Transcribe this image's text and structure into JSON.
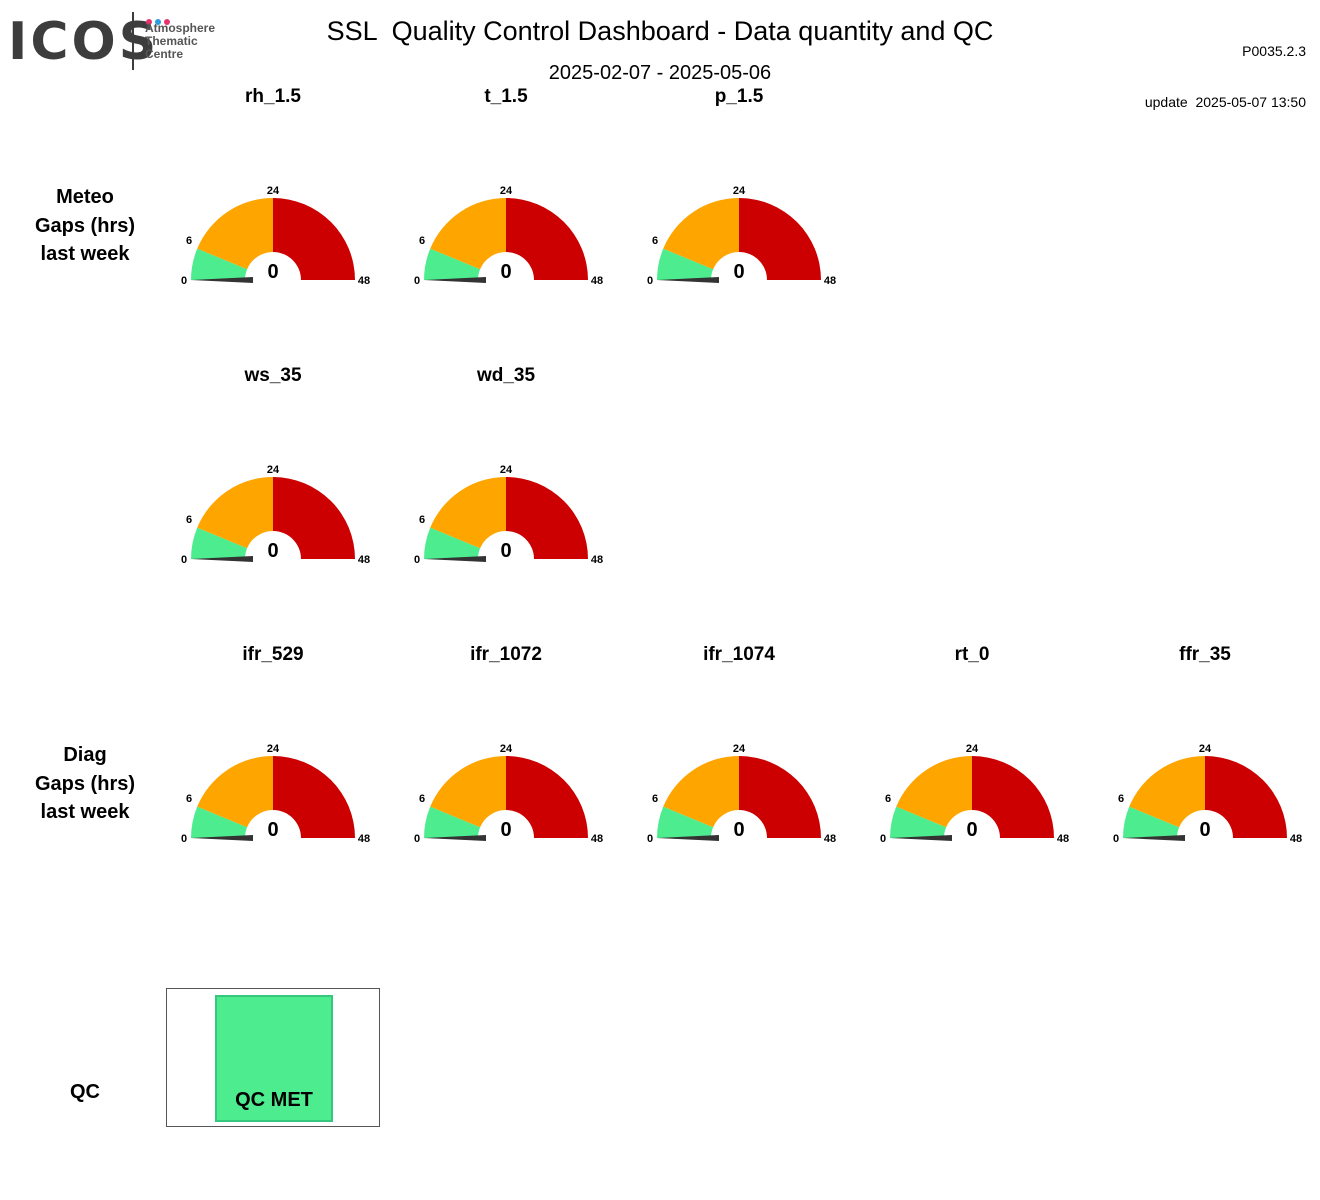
{
  "header": {
    "logo_text": "ICOS",
    "logo_subtitle_lines": [
      "Atmosphere",
      "Thematic",
      "Centre"
    ],
    "title": "SSL  Quality Control Dashboard - Data quantity and QC",
    "date_range": "2025-02-07 - 2025-05-06",
    "version": "P0035.2.3",
    "update": "update  2025-05-07 13:50"
  },
  "colors": {
    "green": "#4ded8f",
    "orange": "#ffa500",
    "red": "#cc0000",
    "needle": "#333333",
    "logo_dots": [
      "#e6336f",
      "#2b9be0",
      "#e6336f"
    ]
  },
  "rows": [
    {
      "label_lines": [
        "Meteo",
        "Gaps (hrs)",
        "last week"
      ]
    },
    {
      "label_lines": [
        "Diag",
        "Gaps (hrs)",
        "last week"
      ]
    },
    {
      "label_lines": [
        "QC"
      ]
    }
  ],
  "chart_data": {
    "type": "gauge",
    "scale": {
      "min": 0,
      "max": 48,
      "ticks": [
        "0",
        "6",
        "24",
        "48"
      ]
    },
    "bands": [
      {
        "from": 0,
        "to": 6,
        "color": "#4ded8f"
      },
      {
        "from": 6,
        "to": 24,
        "color": "#ffa500"
      },
      {
        "from": 24,
        "to": 48,
        "color": "#cc0000"
      }
    ],
    "gauges": [
      {
        "group": "Meteo",
        "name": "rh_1.5",
        "value": 0
      },
      {
        "group": "Meteo",
        "name": "t_1.5",
        "value": 0
      },
      {
        "group": "Meteo",
        "name": "p_1.5",
        "value": 0
      },
      {
        "group": "Meteo",
        "name": "ws_35",
        "value": 0
      },
      {
        "group": "Meteo",
        "name": "wd_35",
        "value": 0
      },
      {
        "group": "Diag",
        "name": "ifr_529",
        "value": 0
      },
      {
        "group": "Diag",
        "name": "ifr_1072",
        "value": 0
      },
      {
        "group": "Diag",
        "name": "ifr_1074",
        "value": 0
      },
      {
        "group": "Diag",
        "name": "rt_0",
        "value": 0
      },
      {
        "group": "Diag",
        "name": "ffr_35",
        "value": 0
      }
    ]
  },
  "qc": {
    "label": "QC MET",
    "status_color": "#4ded8f"
  }
}
